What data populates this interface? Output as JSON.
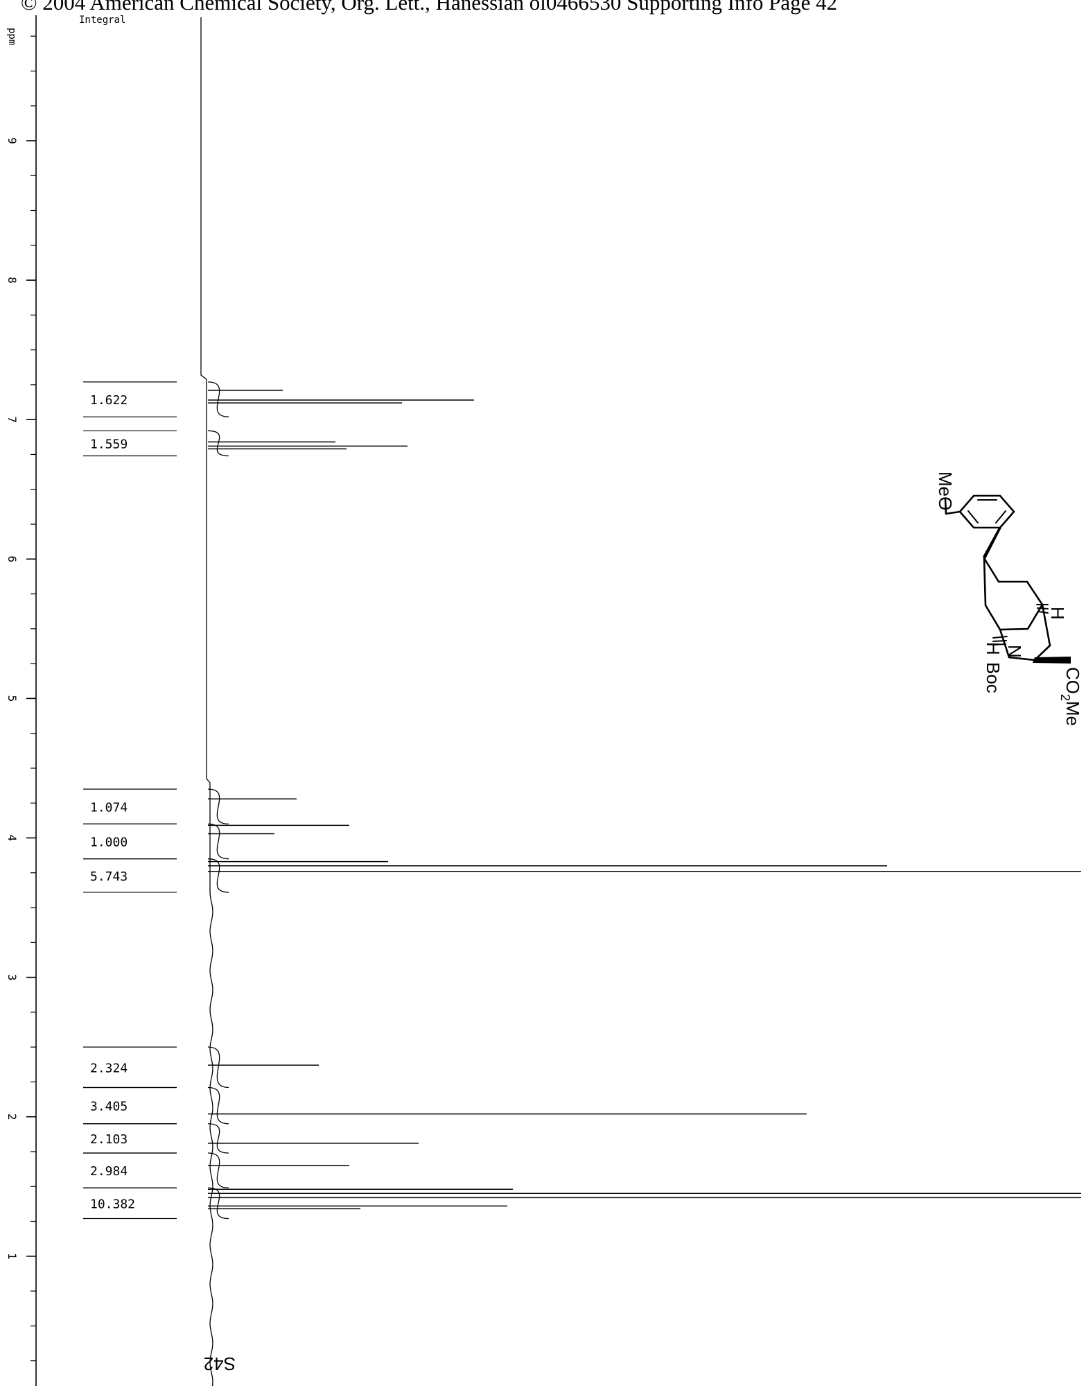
{
  "header": {
    "text": "© 2004 American Chemical Society, Org. Lett., Hanessian ol0466530 Supporting Info Page 42"
  },
  "page_label": "S42",
  "chart_data": {
    "type": "line",
    "title": "",
    "xlabel": "ppm",
    "integral_label": "Integral",
    "orientation": "rotated; chemical shift runs top (high ppm) to bottom (low ppm)",
    "xlim": [
      9.9,
      0.0
    ],
    "ticks": [
      {
        "value": 9,
        "label": "9"
      },
      {
        "value": 8,
        "label": "8"
      },
      {
        "value": 7,
        "label": "7"
      },
      {
        "value": 6,
        "label": "6"
      },
      {
        "value": 5,
        "label": "5"
      },
      {
        "value": 4,
        "label": "4"
      },
      {
        "value": 3,
        "label": "3"
      },
      {
        "value": 2,
        "label": "2"
      },
      {
        "value": 1,
        "label": "1"
      }
    ],
    "integrals": [
      {
        "label": "1.622",
        "from": 7.27,
        "to": 7.02
      },
      {
        "label": "1.559",
        "from": 6.92,
        "to": 6.74
      },
      {
        "label": "1.074",
        "from": 4.35,
        "to": 4.1
      },
      {
        "label": "1.000",
        "from": 4.1,
        "to": 3.85
      },
      {
        "label": "5.743",
        "from": 3.85,
        "to": 3.61
      },
      {
        "label": "2.324",
        "from": 2.5,
        "to": 2.21
      },
      {
        "label": "3.405",
        "from": 2.21,
        "to": 1.95
      },
      {
        "label": "2.103",
        "from": 1.95,
        "to": 1.74
      },
      {
        "label": "2.984",
        "from": 1.74,
        "to": 1.49
      },
      {
        "label": "10.382",
        "from": 1.49,
        "to": 1.27
      }
    ],
    "peaks": [
      {
        "ppm": 7.21,
        "intensity": 0.27
      },
      {
        "ppm": 7.14,
        "intensity": 0.96
      },
      {
        "ppm": 7.12,
        "intensity": 0.7
      },
      {
        "ppm": 6.84,
        "intensity": 0.46
      },
      {
        "ppm": 6.81,
        "intensity": 0.72
      },
      {
        "ppm": 6.79,
        "intensity": 0.5
      },
      {
        "ppm": 4.28,
        "intensity": 0.32
      },
      {
        "ppm": 4.09,
        "intensity": 0.51
      },
      {
        "ppm": 4.03,
        "intensity": 0.24
      },
      {
        "ppm": 3.83,
        "intensity": 0.65
      },
      {
        "ppm": 3.8,
        "intensity": 2.45
      },
      {
        "ppm": 3.76,
        "intensity": 3.15
      },
      {
        "ppm": 2.37,
        "intensity": 0.4
      },
      {
        "ppm": 2.02,
        "intensity": 2.16
      },
      {
        "ppm": 1.81,
        "intensity": 0.76
      },
      {
        "ppm": 1.65,
        "intensity": 0.51
      },
      {
        "ppm": 1.48,
        "intensity": 1.1
      },
      {
        "ppm": 1.45,
        "intensity": 3.15
      },
      {
        "ppm": 1.42,
        "intensity": 3.15
      },
      {
        "ppm": 1.36,
        "intensity": 1.08
      },
      {
        "ppm": 1.34,
        "intensity": 0.55
      }
    ]
  },
  "structure": {
    "labels": [
      "MeO",
      "H",
      "N",
      "Boc",
      "H",
      "CO2Me"
    ]
  }
}
